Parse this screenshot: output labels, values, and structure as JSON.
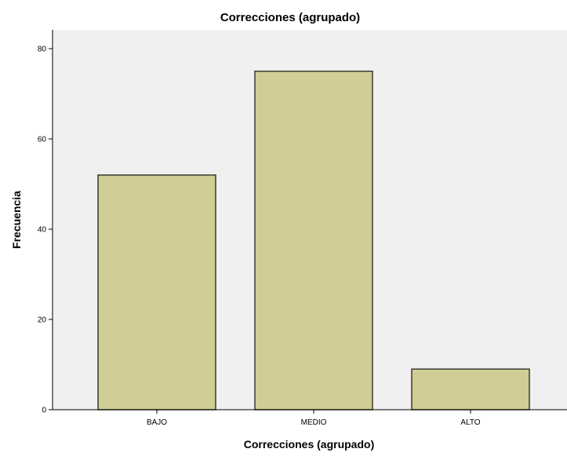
{
  "chart_data": {
    "type": "bar",
    "title": "Correcciones (agrupado)",
    "xlabel": "Correcciones (agrupado)",
    "ylabel": "Frecuencia",
    "categories": [
      "BAJO",
      "MEDIO",
      "ALTO"
    ],
    "values": [
      52,
      75,
      9
    ],
    "ylim": [
      0,
      84
    ],
    "yticks": [
      0,
      20,
      40,
      60,
      80
    ],
    "grid": false,
    "legend": "none",
    "colors": {
      "bar_fill": "#d1cd96",
      "bar_stroke": "#3a3a2a",
      "plot_background": "#f0f0f0",
      "axis": "#000000"
    }
  }
}
